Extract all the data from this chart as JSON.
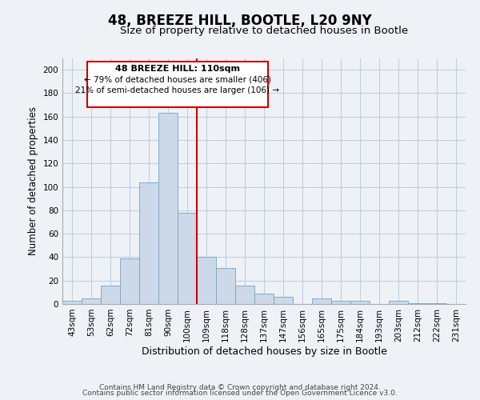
{
  "title": "48, BREEZE HILL, BOOTLE, L20 9NY",
  "subtitle": "Size of property relative to detached houses in Bootle",
  "xlabel": "Distribution of detached houses by size in Bootle",
  "ylabel": "Number of detached properties",
  "bar_color": "#ccd9e8",
  "bar_edge_color": "#7aa0c0",
  "categories": [
    "43sqm",
    "53sqm",
    "62sqm",
    "72sqm",
    "81sqm",
    "90sqm",
    "100sqm",
    "109sqm",
    "118sqm",
    "128sqm",
    "137sqm",
    "147sqm",
    "156sqm",
    "165sqm",
    "175sqm",
    "184sqm",
    "193sqm",
    "203sqm",
    "212sqm",
    "222sqm",
    "231sqm"
  ],
  "values": [
    3,
    5,
    16,
    39,
    104,
    163,
    78,
    40,
    31,
    16,
    9,
    6,
    0,
    5,
    3,
    3,
    0,
    3,
    1,
    1,
    0
  ],
  "ylim": [
    0,
    210
  ],
  "yticks": [
    0,
    20,
    40,
    60,
    80,
    100,
    120,
    140,
    160,
    180,
    200
  ],
  "property_line_color": "#cc0000",
  "annotation_line1": "48 BREEZE HILL: 110sqm",
  "annotation_line2": "← 79% of detached houses are smaller (406)",
  "annotation_line3": "21% of semi-detached houses are larger (106) →",
  "footer_line1": "Contains HM Land Registry data © Crown copyright and database right 2024.",
  "footer_line2": "Contains public sector information licensed under the Open Government Licence v3.0.",
  "background_color": "#eef2f7",
  "plot_bg_color": "#eef2f7",
  "grid_color": "#c0cfe0",
  "title_fontsize": 12,
  "subtitle_fontsize": 9.5,
  "xlabel_fontsize": 9,
  "ylabel_fontsize": 8.5,
  "tick_fontsize": 7.5,
  "footer_fontsize": 6.5
}
